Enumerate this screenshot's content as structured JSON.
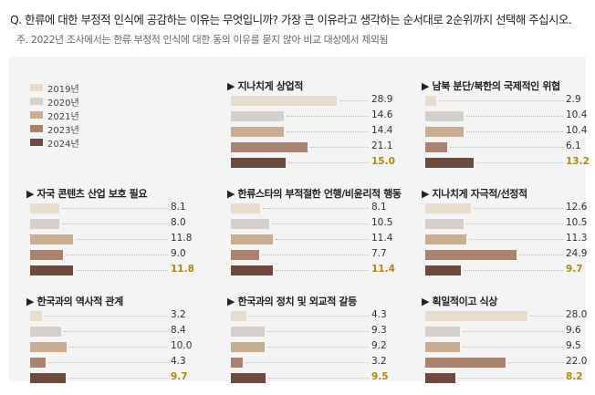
{
  "question": "Q. 한류에 대한 부정적 인식에 공감하는 이유는 무엇입니까? 가장 큰 이유라고 생각하는 순서대로 2순위까지 선택해 주십시오.",
  "note": "주. 2022년 조사에서는 한류 부정적 인식에 대한 동의 이유를 묻지 않아 비교 대상에서 제외됨",
  "colors": {
    "2019년": "#e8ddcc",
    "2020년": "#d3cfcb",
    "2021년": "#c8ad92",
    "2023년": "#a98270",
    "2024년": "#6e4a3e",
    "highlight_value": "#b8860b",
    "panel_background": "#f4f4f4"
  },
  "chart_data": {
    "type": "bar",
    "orientation": "horizontal",
    "legend": [
      "2019년",
      "2020년",
      "2021년",
      "2023년",
      "2024년"
    ],
    "legend_position": "top-left",
    "grid": false,
    "value_unit": "%",
    "panels": [
      {
        "title": "지나치게 상업적",
        "values": [
          28.9,
          14.6,
          14.4,
          21.1,
          15.0
        ],
        "labels": [
          "28.9",
          "14.6",
          "14.4",
          "21.1",
          "15.0"
        ]
      },
      {
        "title": "남북 분단/북한의 국제적인 위협",
        "values": [
          2.9,
          10.4,
          10.4,
          6.1,
          13.2
        ],
        "labels": [
          "2.9",
          "10.4",
          "10.4",
          "6.1",
          "13.2"
        ]
      },
      {
        "title": "자국 콘텐츠 산업 보호 필요",
        "values": [
          8.1,
          8.0,
          11.8,
          9.0,
          11.8
        ],
        "labels": [
          "8.1",
          "8.0",
          "11.8",
          "9.0",
          "11.8"
        ]
      },
      {
        "title": "한류스타의 부적절한 언행/비윤리적 행동",
        "values": [
          8.1,
          10.5,
          11.4,
          7.7,
          11.4
        ],
        "labels": [
          "8.1",
          "10.5",
          "11.4",
          "7.7",
          "11.4"
        ]
      },
      {
        "title": "지나치게 자극적/선정적",
        "values": [
          12.6,
          10.5,
          11.3,
          24.9,
          9.7
        ],
        "labels": [
          "12.6",
          "10.5",
          "11.3",
          "24.9",
          "9.7"
        ]
      },
      {
        "title": "한국과의 역사적 관계",
        "values": [
          3.2,
          8.4,
          10.0,
          4.3,
          9.7
        ],
        "labels": [
          "3.2",
          "8.4",
          "10.0",
          "4.3",
          "9.7"
        ]
      },
      {
        "title": "한국과의 정치 및 외교적 갈등",
        "values": [
          4.3,
          9.3,
          9.2,
          3.2,
          9.5
        ],
        "labels": [
          "4.3",
          "9.3",
          "9.2",
          "3.2",
          "9.5"
        ]
      },
      {
        "title": "획일적이고 식상",
        "values": [
          28.0,
          9.6,
          9.5,
          22.0,
          8.2
        ],
        "labels": [
          "28.0",
          "9.6",
          "9.5",
          "22.0",
          "8.2"
        ]
      }
    ]
  }
}
